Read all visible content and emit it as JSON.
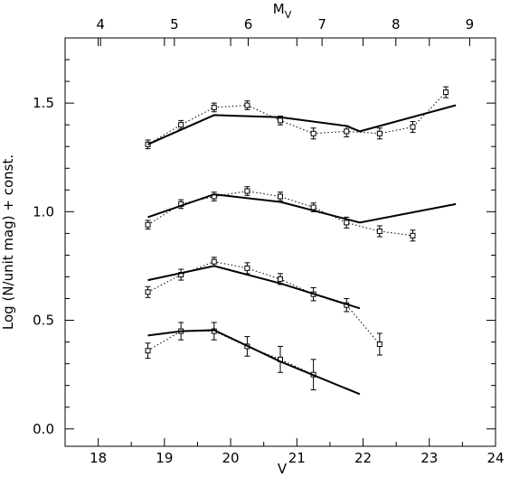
{
  "chart_data": {
    "type": "line",
    "xlabel": "V",
    "ylabel": "Log (N/unit mag) + const.",
    "top_axis_label": "M",
    "top_axis_label_sub": "V",
    "xlim": [
      17.5,
      24.0
    ],
    "ylim": [
      -0.08,
      1.8
    ],
    "top_xlim_mv": [
      3.52,
      9.35
    ],
    "x_ticks": [
      "18",
      "19",
      "20",
      "21",
      "22",
      "23",
      "24"
    ],
    "x_tick_values": [
      18,
      19,
      20,
      21,
      22,
      23,
      24
    ],
    "top_ticks": [
      "4",
      "5",
      "6",
      "7",
      "8",
      "9"
    ],
    "top_tick_values": [
      4,
      5,
      6,
      7,
      8,
      9
    ],
    "y_ticks": [
      "0.0",
      "0.5",
      "1.0",
      "1.5"
    ],
    "y_tick_values": [
      0.0,
      0.5,
      1.0,
      1.5
    ],
    "grid": false,
    "legend": "none",
    "series": [
      {
        "style": "dotted-points-with-errorbars",
        "x": [
          18.75,
          19.25,
          19.75,
          20.25,
          20.75,
          21.25,
          21.75,
          22.25,
          22.75,
          23.25
        ],
        "y": [
          1.31,
          1.4,
          1.48,
          1.49,
          1.42,
          1.36,
          1.37,
          1.36,
          1.39,
          1.55
        ],
        "err": [
          0.02,
          0.02,
          0.02,
          0.02,
          0.02,
          0.025,
          0.025,
          0.025,
          0.025,
          0.025
        ]
      },
      {
        "style": "solid-model",
        "x": [
          18.75,
          19.75,
          20.75,
          21.75,
          21.95,
          23.4
        ],
        "y": [
          1.31,
          1.445,
          1.435,
          1.395,
          1.37,
          1.49
        ]
      },
      {
        "style": "dotted-points-with-errorbars",
        "x": [
          18.75,
          19.25,
          19.75,
          20.25,
          20.75,
          21.25,
          21.75,
          22.25,
          22.75
        ],
        "y": [
          0.94,
          1.035,
          1.07,
          1.095,
          1.07,
          1.02,
          0.95,
          0.91,
          0.89
        ],
        "err": [
          0.02,
          0.02,
          0.02,
          0.02,
          0.02,
          0.02,
          0.025,
          0.025,
          0.025
        ]
      },
      {
        "style": "solid-model",
        "x": [
          18.75,
          19.75,
          20.75,
          21.95,
          23.4
        ],
        "y": [
          0.975,
          1.08,
          1.045,
          0.95,
          1.035
        ]
      },
      {
        "style": "dotted-points-with-errorbars",
        "x": [
          18.75,
          19.25,
          19.75,
          20.25,
          20.75,
          21.25,
          21.75,
          22.25
        ],
        "y": [
          0.63,
          0.71,
          0.77,
          0.74,
          0.69,
          0.62,
          0.57,
          0.39
        ],
        "err": [
          0.025,
          0.025,
          0.02,
          0.025,
          0.025,
          0.03,
          0.03,
          0.05
        ]
      },
      {
        "style": "solid-model",
        "x": [
          18.75,
          19.75,
          20.75,
          21.95
        ],
        "y": [
          0.685,
          0.75,
          0.67,
          0.555
        ]
      },
      {
        "style": "dotted-points-with-errorbars",
        "x": [
          18.75,
          19.25,
          19.75,
          20.25,
          20.75,
          21.25
        ],
        "y": [
          0.36,
          0.45,
          0.45,
          0.38,
          0.32,
          0.25
        ],
        "err": [
          0.035,
          0.04,
          0.04,
          0.045,
          0.06,
          0.07
        ]
      },
      {
        "style": "solid-model",
        "x": [
          18.75,
          19.25,
          19.75,
          20.75,
          21.95
        ],
        "y": [
          0.43,
          0.45,
          0.455,
          0.31,
          0.16
        ]
      }
    ]
  }
}
